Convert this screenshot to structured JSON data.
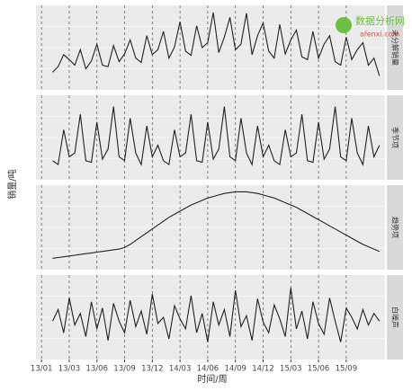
{
  "chart_data": {
    "type": "line",
    "x_label": "时间/周",
    "y_label": "销量/吨",
    "xlim": [
      -3,
      60
    ],
    "xticks": [
      {
        "value": -2,
        "label": "13/01"
      },
      {
        "value": 3,
        "label": "13/03"
      },
      {
        "value": 8,
        "label": "13/06"
      },
      {
        "value": 13,
        "label": "13/09"
      },
      {
        "value": 18,
        "label": "13/12"
      },
      {
        "value": 23,
        "label": "14/03"
      },
      {
        "value": 28,
        "label": "14/06"
      },
      {
        "value": 33,
        "label": "14/09"
      },
      {
        "value": 38,
        "label": "14/12"
      },
      {
        "value": 43,
        "label": "15/03"
      },
      {
        "value": 48,
        "label": "15/06"
      },
      {
        "value": 53,
        "label": "15/09"
      }
    ],
    "series": [
      {
        "name": "未分解销量",
        "color": "#222222",
        "ylim": [
          0,
          110
        ],
        "values": [
          20,
          28,
          45,
          38,
          30,
          52,
          25,
          36,
          60,
          30,
          28,
          58,
          35,
          46,
          66,
          40,
          34,
          72,
          45,
          52,
          78,
          40,
          56,
          92,
          50,
          44,
          86,
          55,
          62,
          105,
          48,
          70,
          98,
          52,
          60,
          104,
          45,
          72,
          90,
          50,
          40,
          88,
          46,
          66,
          80,
          42,
          38,
          78,
          40,
          60,
          72,
          35,
          30,
          70,
          38,
          52,
          62,
          30,
          40,
          15
        ]
      },
      {
        "name": "季节项",
        "color": "#222222",
        "ylim": [
          0,
          100
        ],
        "values": [
          20,
          15,
          60,
          25,
          30,
          80,
          20,
          18,
          70,
          22,
          35,
          90,
          25,
          20,
          75,
          30,
          15,
          65,
          25,
          40,
          20,
          15,
          60,
          25,
          30,
          80,
          20,
          18,
          70,
          22,
          35,
          90,
          25,
          20,
          75,
          30,
          15,
          65,
          25,
          40,
          20,
          15,
          60,
          25,
          30,
          80,
          20,
          18,
          70,
          22,
          35,
          90,
          25,
          20,
          75,
          30,
          15,
          65,
          25,
          40
        ]
      },
      {
        "name": "趋势项",
        "color": "#222222",
        "ylim": [
          0,
          100
        ],
        "values": [
          10,
          11,
          12,
          13,
          14,
          15,
          16,
          17,
          18,
          19,
          20,
          21,
          22,
          24,
          28,
          33,
          38,
          43,
          48,
          53,
          58,
          63,
          67,
          71,
          75,
          79,
          82,
          85,
          88,
          90,
          92,
          94,
          95,
          96,
          96,
          96,
          95,
          94,
          92,
          90,
          88,
          85,
          82,
          79,
          76,
          72,
          68,
          64,
          60,
          56,
          52,
          48,
          44,
          40,
          36,
          32,
          28,
          25,
          22,
          19
        ]
      },
      {
        "name": "白噪声",
        "color": "#222222",
        "ylim": [
          0,
          100
        ],
        "values": [
          45,
          60,
          30,
          75,
          40,
          55,
          25,
          70,
          35,
          62,
          20,
          68,
          45,
          30,
          72,
          38,
          58,
          28,
          80,
          42,
          50,
          22,
          65,
          48,
          35,
          78,
          30,
          55,
          18,
          70,
          40,
          60,
          25,
          85,
          38,
          52,
          20,
          74,
          44,
          30,
          66,
          48,
          25,
          88,
          35,
          58,
          22,
          70,
          42,
          28,
          75,
          45,
          18,
          62,
          50,
          35,
          60,
          40,
          55,
          45
        ]
      }
    ]
  },
  "watermark": {
    "title": "数据分析网",
    "url": "afenxi.com"
  }
}
